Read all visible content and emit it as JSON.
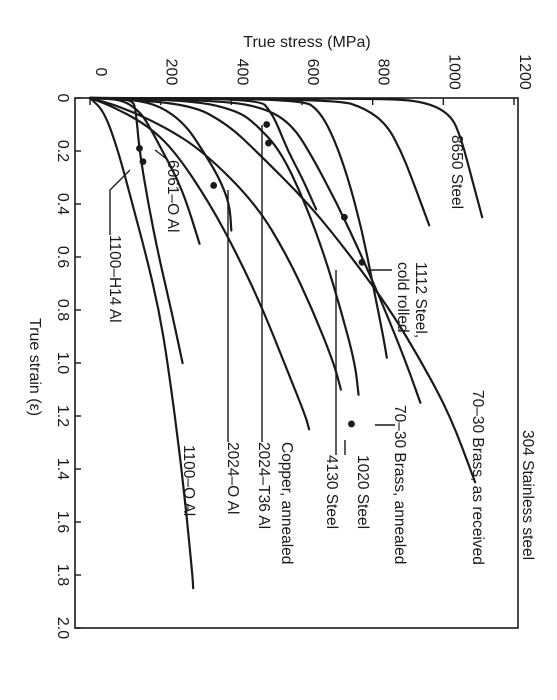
{
  "chart_data": {
    "type": "line",
    "title": "",
    "xlabel": "True strain (ε)",
    "ylabel": "True stress (MPa)",
    "xlim": [
      0,
      2.0
    ],
    "ylim": [
      0,
      1200
    ],
    "x_ticks": [
      "0",
      "0.2",
      "0.4",
      "0.6",
      "0.8",
      "1.0",
      "1.2",
      "1.4",
      "1.6",
      "1.8",
      "2.0"
    ],
    "y_ticks": [
      "0",
      "200",
      "400",
      "600",
      "800",
      "1000",
      "1200"
    ],
    "series": [
      {
        "name": "304 Stainless steel",
        "points": [
          [
            0,
            0
          ],
          [
            0.02,
            280
          ],
          [
            0.1,
            390
          ],
          [
            0.2,
            470
          ],
          [
            0.4,
            620
          ],
          [
            0.6,
            740
          ],
          [
            0.8,
            850
          ],
          [
            1.0,
            940
          ],
          [
            1.2,
            1020
          ],
          [
            1.45,
            1090
          ]
        ]
      },
      {
        "name": "70–30 Brass, as received",
        "points": [
          [
            0,
            0
          ],
          [
            0.01,
            380
          ],
          [
            0.04,
            500
          ],
          [
            0.1,
            570
          ],
          [
            0.2,
            620
          ],
          [
            0.4,
            700
          ],
          [
            0.6,
            770
          ],
          [
            0.8,
            835
          ],
          [
            1.0,
            895
          ],
          [
            1.15,
            935
          ]
        ]
      },
      {
        "name": "8650 Steel",
        "points": [
          [
            0,
            0
          ],
          [
            0.002,
            800
          ],
          [
            0.01,
            940
          ],
          [
            0.06,
            1020
          ],
          [
            0.15,
            1050
          ],
          [
            0.3,
            1080
          ],
          [
            0.45,
            1110
          ]
        ]
      },
      {
        "name": "1112 Steel, cold rolled",
        "points": [
          [
            0,
            0
          ],
          [
            0.005,
            700
          ],
          [
            0.04,
            780
          ],
          [
            0.1,
            840
          ],
          [
            0.2,
            880
          ],
          [
            0.3,
            910
          ],
          [
            0.48,
            960
          ]
        ]
      },
      {
        "name": "70–30 Brass, annealed",
        "points": [
          [
            0,
            0
          ],
          [
            0.03,
            80
          ],
          [
            0.1,
            200
          ],
          [
            0.2,
            320
          ],
          [
            0.4,
            470
          ],
          [
            0.6,
            560
          ],
          [
            0.8,
            630
          ],
          [
            1.0,
            690
          ],
          [
            1.1,
            710
          ]
        ]
      },
      {
        "name": "1020 Steel",
        "points": [
          [
            0,
            0
          ],
          [
            0.01,
            300
          ],
          [
            0.05,
            420
          ],
          [
            0.1,
            470
          ],
          [
            0.2,
            540
          ],
          [
            0.4,
            610
          ],
          [
            0.6,
            665
          ],
          [
            0.8,
            710
          ],
          [
            1.0,
            750
          ],
          [
            1.12,
            760
          ]
        ]
      },
      {
        "name": "4130 Steel",
        "points": [
          [
            0,
            0
          ],
          [
            0.003,
            600
          ],
          [
            0.05,
            650
          ],
          [
            0.15,
            690
          ],
          [
            0.3,
            730
          ],
          [
            0.5,
            770
          ],
          [
            0.7,
            800
          ],
          [
            0.9,
            830
          ],
          [
            0.98,
            840
          ]
        ]
      },
      {
        "name": "Copper, annealed",
        "points": [
          [
            0,
            0
          ],
          [
            0.03,
            60
          ],
          [
            0.1,
            160
          ],
          [
            0.2,
            240
          ],
          [
            0.4,
            340
          ],
          [
            0.6,
            420
          ],
          [
            0.8,
            490
          ],
          [
            1.0,
            550
          ],
          [
            1.2,
            610
          ],
          [
            1.25,
            620
          ]
        ]
      },
      {
        "name": "2024–T36 Al",
        "points": [
          [
            0,
            0
          ],
          [
            0.003,
            480
          ],
          [
            0.05,
            510
          ],
          [
            0.1,
            530
          ],
          [
            0.2,
            560
          ],
          [
            0.3,
            600
          ],
          [
            0.42,
            640
          ]
        ]
      },
      {
        "name": "2024–O Al",
        "points": [
          [
            0,
            0
          ],
          [
            0.005,
            120
          ],
          [
            0.03,
            200
          ],
          [
            0.1,
            270
          ],
          [
            0.2,
            320
          ],
          [
            0.3,
            365
          ],
          [
            0.4,
            395
          ],
          [
            0.5,
            400
          ]
        ]
      },
      {
        "name": "6061–O Al",
        "points": [
          [
            0,
            0
          ],
          [
            0.005,
            90
          ],
          [
            0.05,
            140
          ],
          [
            0.1,
            165
          ],
          [
            0.2,
            205
          ],
          [
            0.3,
            245
          ],
          [
            0.4,
            275
          ],
          [
            0.55,
            310
          ]
        ]
      },
      {
        "name": "1100–H14 Al",
        "points": [
          [
            0,
            0
          ],
          [
            0.003,
            120
          ],
          [
            0.05,
            130
          ],
          [
            0.2,
            140
          ],
          [
            0.4,
            165
          ],
          [
            0.6,
            195
          ],
          [
            0.8,
            230
          ],
          [
            1.0,
            262
          ]
        ]
      },
      {
        "name": "1100–O Al",
        "points": [
          [
            0,
            0
          ],
          [
            0.05,
            40
          ],
          [
            0.2,
            80
          ],
          [
            0.4,
            120
          ],
          [
            0.6,
            160
          ],
          [
            0.8,
            195
          ],
          [
            1.0,
            220
          ],
          [
            1.4,
            260
          ],
          [
            1.8,
            290
          ],
          [
            1.85,
            292
          ]
        ]
      }
    ],
    "markers": [
      [
        0.62,
        770
      ],
      [
        1.23,
        740
      ],
      [
        0.1,
        500
      ],
      [
        0.33,
        350
      ],
      [
        0.24,
        150
      ],
      [
        0.19,
        140
      ],
      [
        0.17,
        505
      ],
      [
        0.45,
        720
      ]
    ],
    "grid": false,
    "legend": "none (labels placed beside curves)"
  }
}
